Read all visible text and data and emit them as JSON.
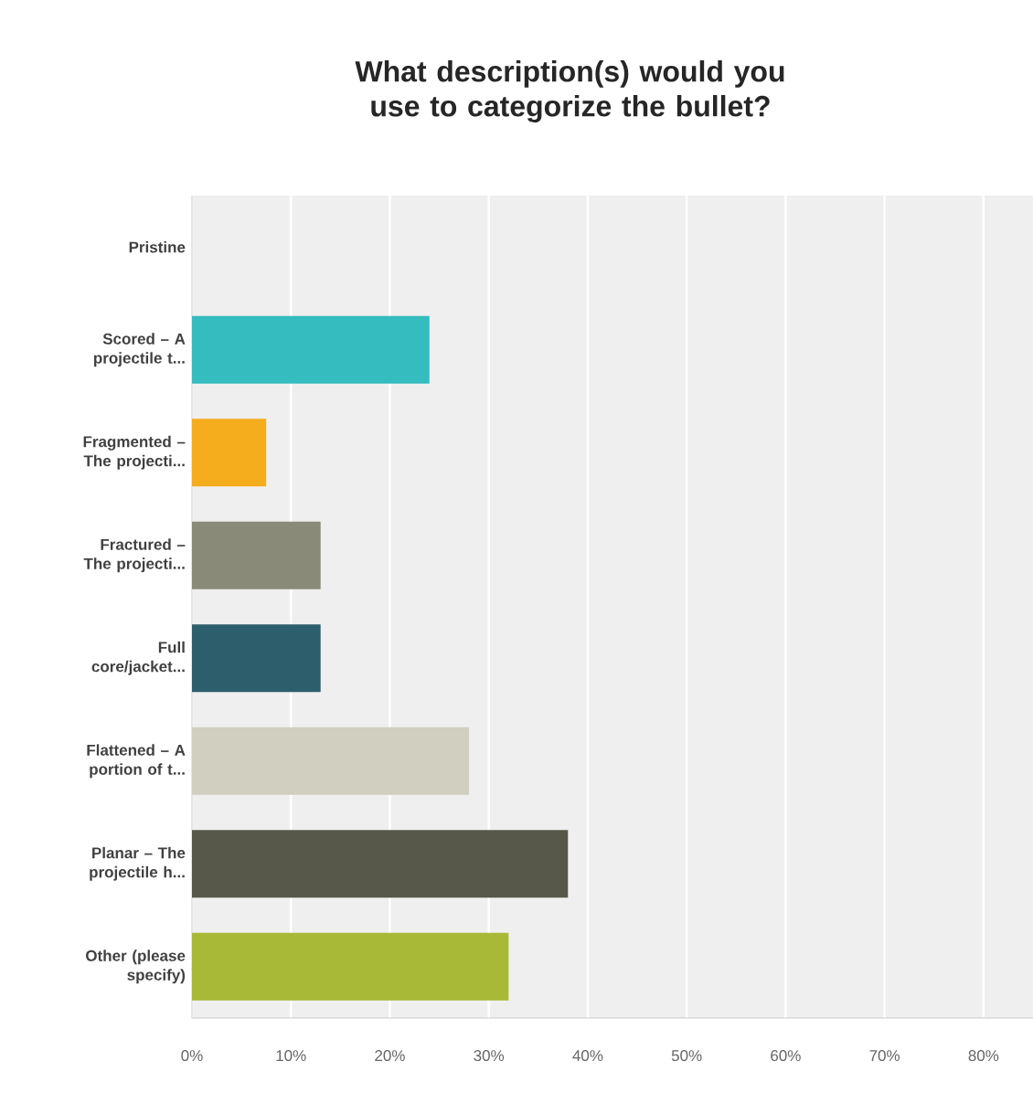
{
  "chart_data": {
    "type": "bar",
    "orientation": "horizontal",
    "title": "What description(s) would you use to categorize the bullet?",
    "categories": [
      "Pristine",
      "Scored – A projectile t...",
      "Fragmented – The projecti...",
      "Fractured – The projecti...",
      "Full core/jacket...",
      "Flattened – A portion of t...",
      "Planar – The projectile h...",
      "Other (please specify)"
    ],
    "values": [
      0,
      24,
      7.5,
      13,
      13,
      28,
      38,
      32
    ],
    "colors": [
      "#35bcbf",
      "#35bcbf",
      "#f5ad1e",
      "#898a78",
      "#2d5e6b",
      "#d0cfc0",
      "#57574a",
      "#a7b936"
    ],
    "xlim": [
      0,
      85
    ],
    "xticks": [
      {
        "value": 0,
        "label": "0%"
      },
      {
        "value": 10,
        "label": "10%"
      },
      {
        "value": 20,
        "label": "20%"
      },
      {
        "value": 30,
        "label": "30%"
      },
      {
        "value": 40,
        "label": "40%"
      },
      {
        "value": 50,
        "label": "50%"
      },
      {
        "value": 60,
        "label": "60%"
      },
      {
        "value": 70,
        "label": "70%"
      },
      {
        "value": 80,
        "label": "80%"
      }
    ],
    "grid": "x"
  }
}
